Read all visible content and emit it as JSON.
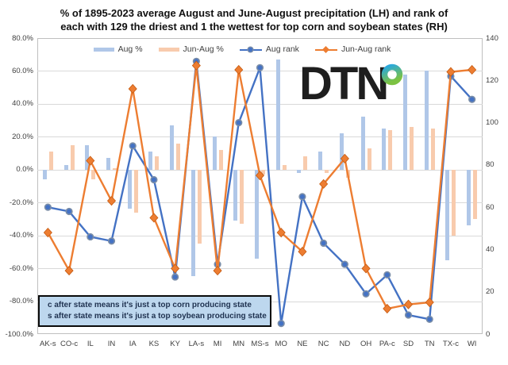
{
  "title": {
    "line1": "% of 1895-2023 average August and June-August precipitation (LH) and rank of",
    "line2": "each with 129 the driest and 1 the wettest for top corn and soybean states (RH)"
  },
  "logo": {
    "text": "DTN"
  },
  "footnote": {
    "line1": "c after state means it's just a top corn producing state",
    "line2": "s after state means it's just a top soybean producing state"
  },
  "colors": {
    "aug_bar": "#b0c7e8",
    "junaug_bar": "#f8cbad",
    "aug_line": "#4472c4",
    "junaug_line": "#ed7d31",
    "marker_ring": "#7b8ea8",
    "grid": "#d9d9d9",
    "plot_border": "#bfbfbf",
    "axis_text": "#404040",
    "footnote_bg": "#bdd7ee",
    "footnote_text": "#1f3250"
  },
  "chart_data": {
    "type": "combo",
    "categories": [
      "AK-s",
      "CO-c",
      "IL",
      "IN",
      "IA",
      "KS",
      "KY",
      "LA-s",
      "MI",
      "MN",
      "MS-s",
      "MO",
      "NE",
      "NC",
      "ND",
      "OH",
      "PA-c",
      "SD",
      "TN",
      "TX-c",
      "WI"
    ],
    "series": [
      {
        "name": "Aug %",
        "type": "bar",
        "axis": "left",
        "color": "#b0c7e8",
        "values": [
          -6,
          3,
          15,
          7,
          -24,
          11,
          27,
          -65,
          20,
          -31,
          -54,
          67,
          -2,
          11,
          22,
          32,
          25,
          58,
          60,
          -55,
          -34
        ]
      },
      {
        "name": "Jun-Aug %",
        "type": "bar",
        "axis": "left",
        "color": "#f8cbad",
        "values": [
          11,
          15,
          -6,
          1,
          -26,
          8,
          16,
          -45,
          12,
          -33,
          -3,
          3,
          8,
          -2,
          -5,
          13,
          24,
          26,
          25,
          -40,
          -30
        ]
      },
      {
        "name": "Aug rank",
        "type": "line",
        "axis": "right",
        "color": "#4472c4",
        "marker": "circle",
        "values": [
          60,
          58,
          46,
          44,
          89,
          73,
          27,
          129,
          33,
          100,
          126,
          5,
          65,
          43,
          33,
          19,
          28,
          9,
          7,
          122,
          111
        ]
      },
      {
        "name": "Jun-Aug rank",
        "type": "line",
        "axis": "right",
        "color": "#ed7d31",
        "marker": "diamond",
        "values": [
          48,
          30,
          82,
          63,
          116,
          55,
          31,
          127,
          30,
          125,
          75,
          48,
          39,
          71,
          83,
          31,
          12,
          14,
          15,
          124,
          125
        ]
      }
    ],
    "left_axis": {
      "min": -100,
      "max": 80,
      "step": 20,
      "format": "percent-1dp"
    },
    "right_axis": {
      "min": 0,
      "max": 140,
      "step": 20
    },
    "grid": true,
    "legend_position": "top"
  }
}
